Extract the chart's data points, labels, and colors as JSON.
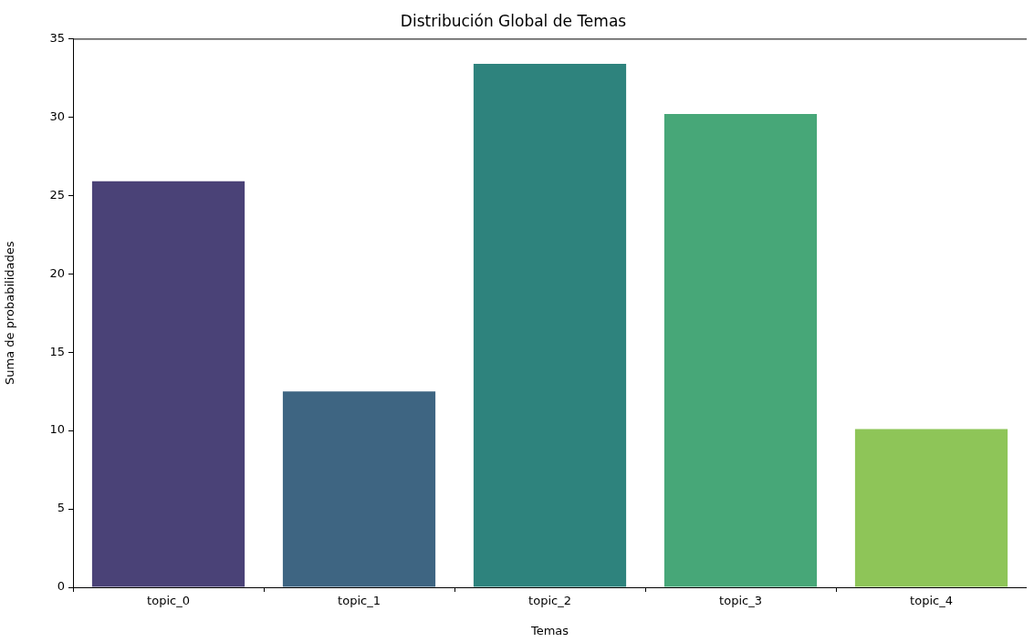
{
  "chart_data": {
    "type": "bar",
    "title": "Distribución Global de Temas",
    "xlabel": "Temas",
    "ylabel": "Suma de probabilidades",
    "categories": [
      "topic_0",
      "topic_1",
      "topic_2",
      "topic_3",
      "topic_4"
    ],
    "values": [
      25.9,
      12.5,
      33.4,
      30.2,
      10.1
    ],
    "colors": [
      "#4a4277",
      "#3e6582",
      "#2e837d",
      "#47a778",
      "#8ec558"
    ],
    "ylim": [
      0,
      35
    ],
    "yticks": [
      0,
      5,
      10,
      15,
      20,
      25,
      30,
      35
    ],
    "grid": false,
    "legend": false
  }
}
